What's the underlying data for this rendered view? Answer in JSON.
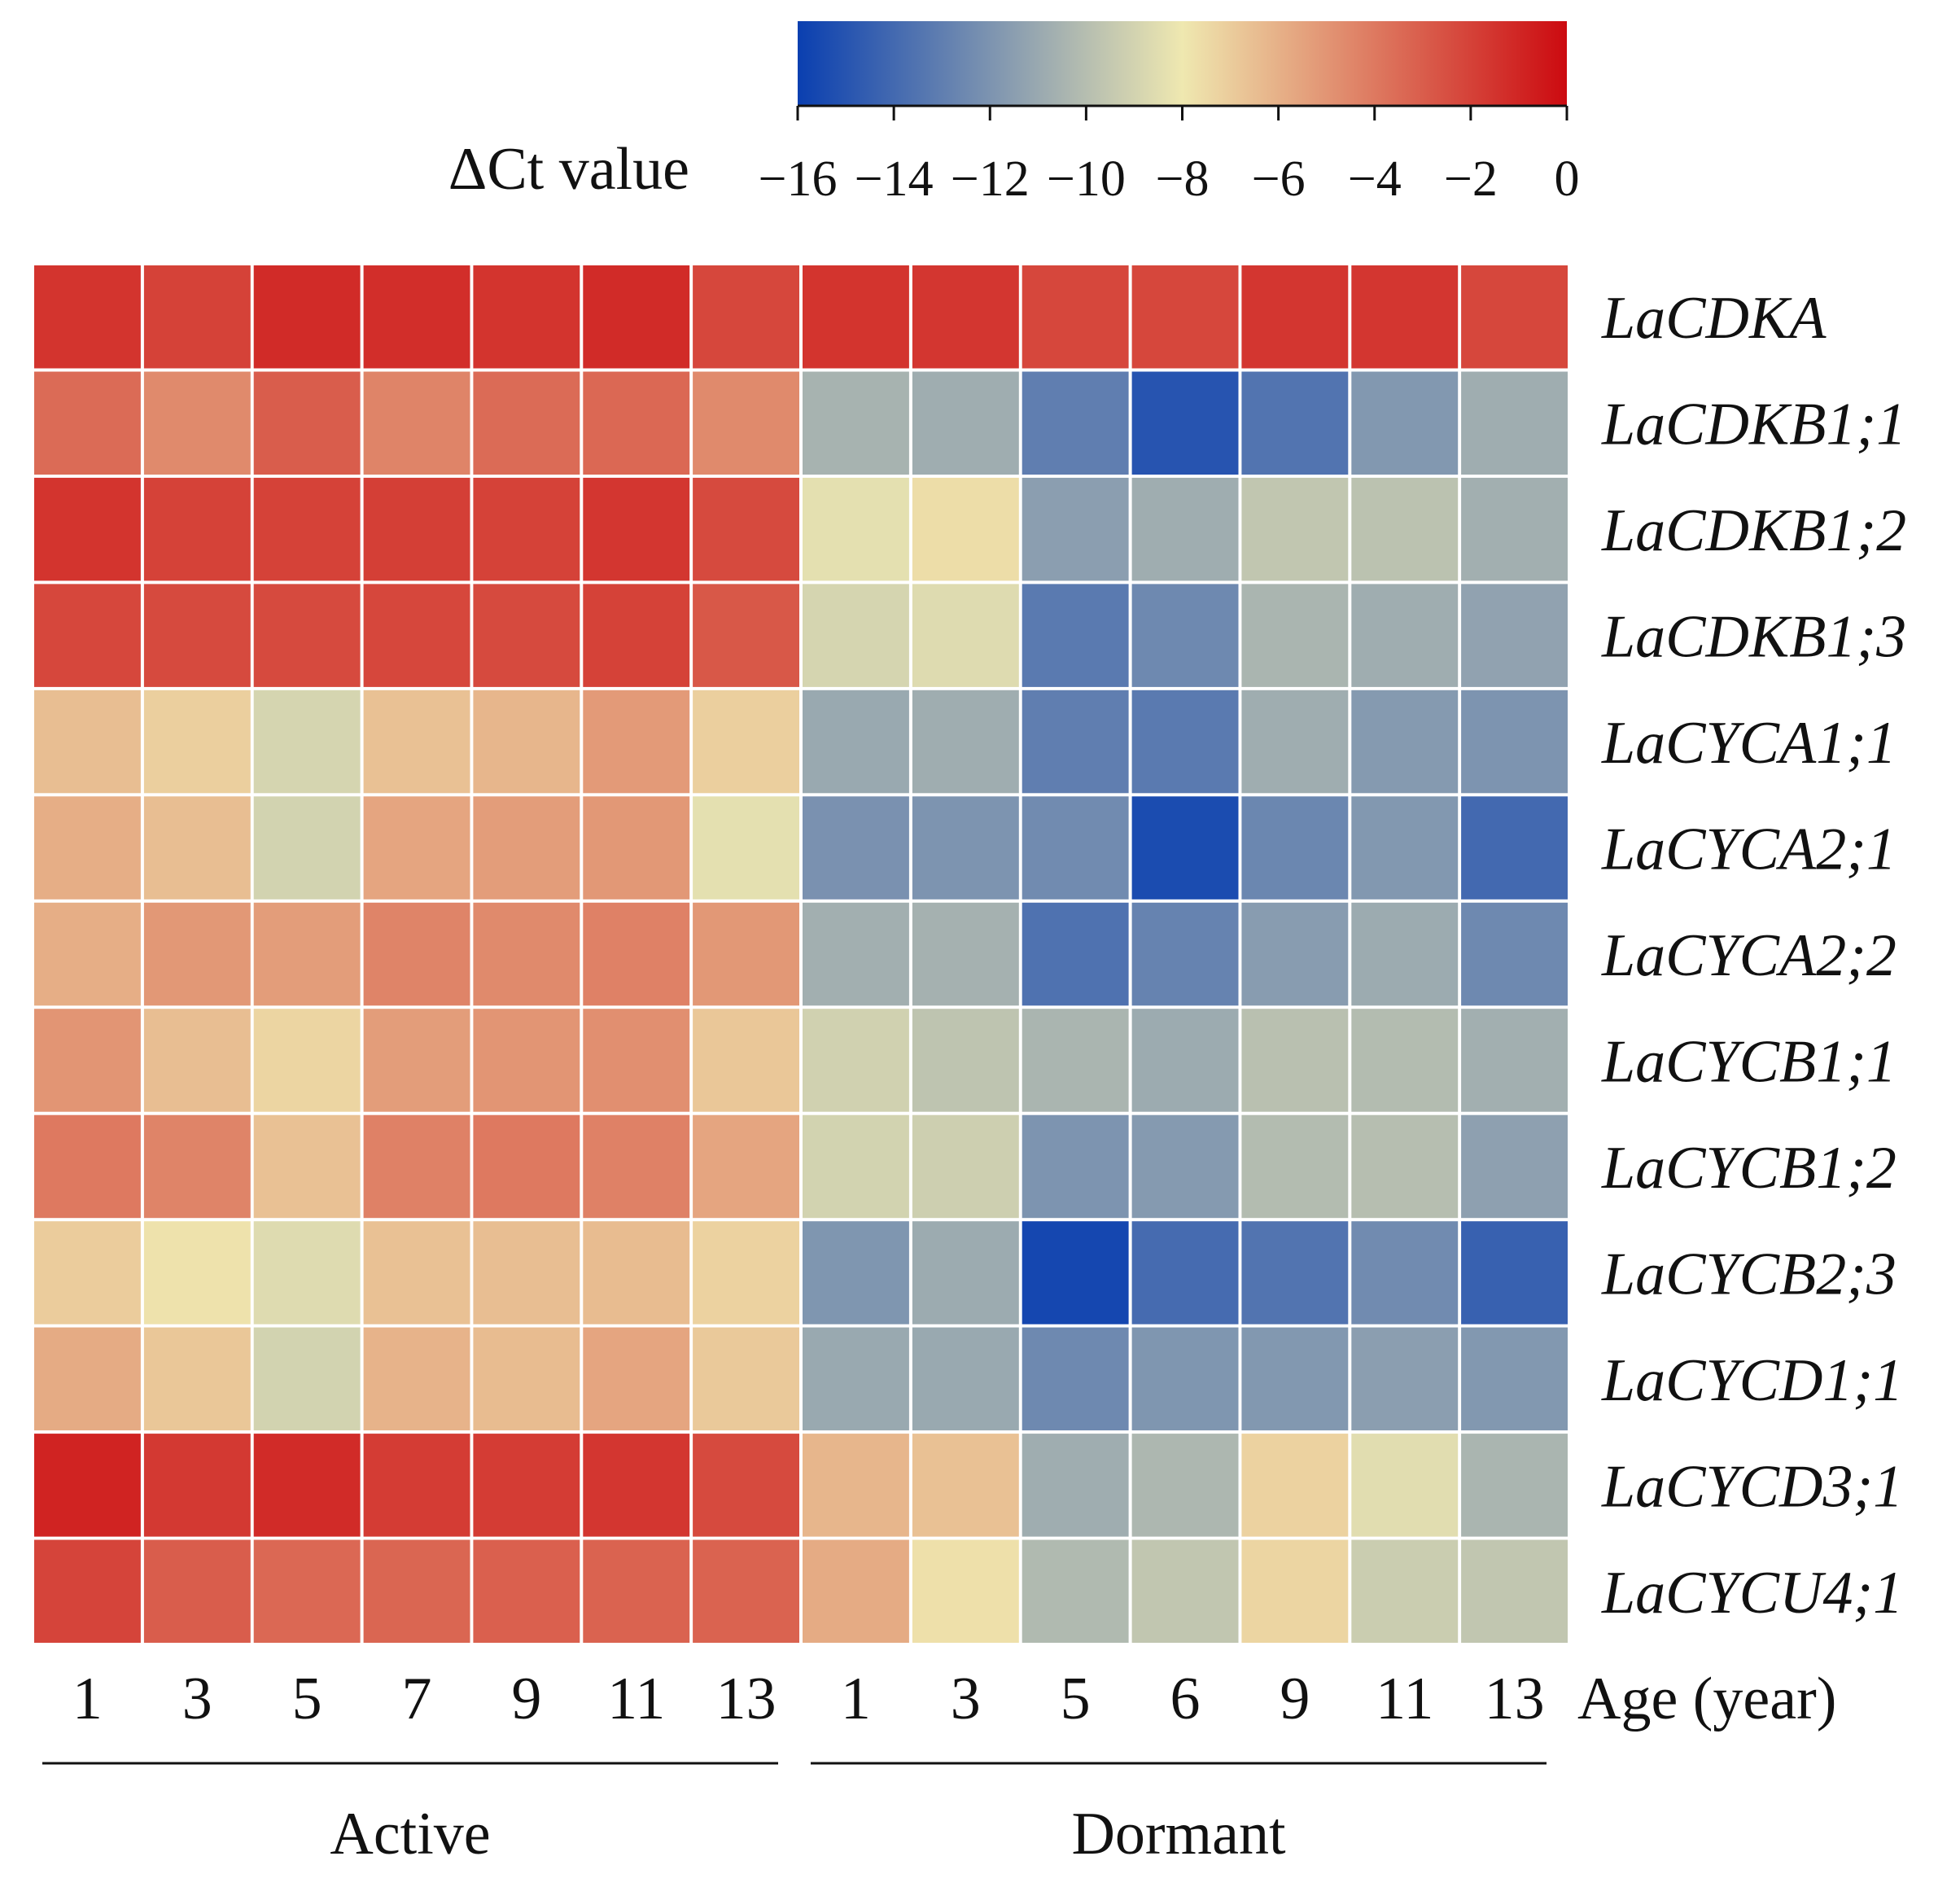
{
  "chart_data": {
    "type": "heatmap",
    "title": "",
    "colorbar": {
      "title": "ΔCt value",
      "ticks": [
        "−16",
        "−14",
        "−12",
        "−10",
        "−8",
        "−6",
        "−4",
        "−2",
        "0"
      ],
      "range": [
        -16,
        0
      ],
      "colors": [
        "#0a3fb0",
        "#efe8b0",
        "#cc0a10"
      ]
    },
    "genes": [
      "LaCDKA",
      "LaCDKB1;1",
      "LaCDKB1;2",
      "LaCDKB1;3",
      "LaCYCA1;1",
      "LaCYCA2;1",
      "LaCYCA2;2",
      "LaCYCB1;1",
      "LaCYCB1;2",
      "LaCYCB2;3",
      "LaCYCD1;1",
      "LaCYCD3;1",
      "LaCYCU4;1"
    ],
    "columns": [
      "1",
      "3",
      "5",
      "7",
      "9",
      "11",
      "13",
      "1",
      "3",
      "5",
      "6",
      "9",
      "11",
      "13"
    ],
    "xlabel": "Age (year)",
    "groups": [
      {
        "label": "Active",
        "columns": 7
      },
      {
        "label": "Dormant",
        "columns": 7
      }
    ],
    "values": [
      [
        -1.5,
        -2.0,
        -1.2,
        -1.3,
        -1.5,
        -1.2,
        -2.2,
        -1.5,
        -1.6,
        -2.2,
        -2.2,
        -1.6,
        -1.6,
        -2.2
      ],
      [
        -3.5,
        -4.6,
        -3.0,
        -4.4,
        -3.5,
        -3.4,
        -4.6,
        -10.5,
        -10.8,
        -13.0,
        -15.0,
        -13.5,
        -11.8,
        -10.8
      ],
      [
        -1.5,
        -2.0,
        -2.0,
        -1.9,
        -2.0,
        -1.6,
        -2.3,
        -8.4,
        -7.6,
        -11.5,
        -10.8,
        -9.6,
        -9.8,
        -10.7
      ],
      [
        -2.2,
        -2.3,
        -2.3,
        -2.2,
        -2.3,
        -2.0,
        -2.8,
        -8.9,
        -8.6,
        -13.2,
        -12.5,
        -10.4,
        -10.8,
        -11.3
      ],
      [
        -6.5,
        -7.1,
        -8.9,
        -6.6,
        -6.2,
        -5.2,
        -7.1,
        -11.0,
        -10.8,
        -13.0,
        -13.2,
        -10.8,
        -11.7,
        -12.0
      ],
      [
        -5.9,
        -6.5,
        -9.0,
        -5.6,
        -5.3,
        -5.1,
        -8.4,
        -12.1,
        -12.0,
        -12.4,
        -15.4,
        -12.6,
        -11.8,
        -14.0
      ],
      [
        -5.9,
        -5.1,
        -5.3,
        -4.4,
        -4.6,
        -4.3,
        -5.1,
        -10.7,
        -10.6,
        -13.6,
        -12.8,
        -11.6,
        -10.9,
        -12.5
      ],
      [
        -5.0,
        -6.5,
        -7.3,
        -5.3,
        -5.0,
        -4.8,
        -6.8,
        -9.1,
        -9.7,
        -10.4,
        -10.9,
        -9.9,
        -10.1,
        -10.7
      ],
      [
        -4.0,
        -4.4,
        -6.6,
        -4.3,
        -4.0,
        -4.3,
        -5.6,
        -9.0,
        -9.2,
        -12.0,
        -11.7,
        -10.1,
        -10.0,
        -11.4
      ],
      [
        -7.0,
        -7.8,
        -8.6,
        -6.6,
        -6.5,
        -6.4,
        -7.2,
        -11.9,
        -10.9,
        -15.6,
        -13.9,
        -13.5,
        -12.4,
        -14.4
      ],
      [
        -5.8,
        -6.8,
        -9.0,
        -6.1,
        -6.4,
        -5.6,
        -6.9,
        -11.0,
        -11.0,
        -12.5,
        -11.9,
        -11.8,
        -11.5,
        -11.8
      ],
      [
        -0.9,
        -1.7,
        -1.2,
        -1.8,
        -1.8,
        -1.6,
        -2.3,
        -6.2,
        -6.6,
        -10.8,
        -10.3,
        -7.2,
        -8.5,
        -10.4
      ],
      [
        -2.1,
        -3.0,
        -3.4,
        -3.3,
        -3.1,
        -3.2,
        -3.2,
        -5.8,
        -7.7,
        -10.2,
        -9.6,
        -7.3,
        -9.3,
        -9.6
      ]
    ]
  }
}
